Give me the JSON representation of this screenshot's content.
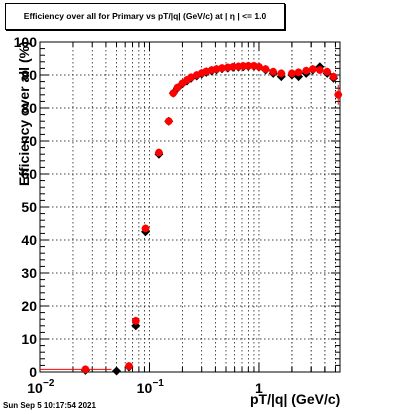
{
  "chart_data": {
    "type": "scatter",
    "title": "Efficiency over all for Primary vs pT/|q| (GeV/c) at |  η | <= 1.0",
    "xlabel": "pT/|q| (GeV/c)",
    "ylabel": "Efficiency over all (%)",
    "x_scale": "log",
    "xlim": [
      0.01,
      5.5
    ],
    "ylim": [
      0,
      100
    ],
    "grid": true,
    "x_ticks": [
      {
        "value": 0.01,
        "label": "10",
        "exponent": "−2"
      },
      {
        "value": 0.1,
        "label": "10",
        "exponent": "−1"
      },
      {
        "value": 1,
        "label": "1",
        "exponent": ""
      }
    ],
    "y_ticks": [
      "0",
      "10",
      "20",
      "30",
      "40",
      "50",
      "60",
      "70",
      "80",
      "90",
      "100"
    ],
    "series": [
      {
        "color": "#000000",
        "marker": "diamond",
        "points": [
          [
            0.026,
            0.5
          ],
          [
            0.05,
            0.3
          ],
          [
            0.065,
            1.5
          ],
          [
            0.075,
            14
          ],
          [
            0.092,
            42.5
          ],
          [
            0.122,
            66
          ],
          [
            0.15,
            76
          ],
          [
            0.165,
            84.5
          ],
          [
            0.18,
            86
          ],
          [
            0.2,
            87.3
          ],
          [
            0.22,
            88.2
          ],
          [
            0.24,
            89
          ],
          [
            0.27,
            89.7
          ],
          [
            0.3,
            90.3
          ],
          [
            0.33,
            90.8
          ],
          [
            0.37,
            91.2
          ],
          [
            0.41,
            91.6
          ],
          [
            0.46,
            91.9
          ],
          [
            0.52,
            92.1
          ],
          [
            0.58,
            92.3
          ],
          [
            0.65,
            92.4
          ],
          [
            0.72,
            92.5
          ],
          [
            0.8,
            92.6
          ],
          [
            0.9,
            92.6
          ],
          [
            1.0,
            92.4
          ],
          [
            1.15,
            91.5
          ],
          [
            1.35,
            90.5
          ],
          [
            1.6,
            89.5
          ],
          [
            2.0,
            90
          ],
          [
            2.3,
            89.5
          ],
          [
            2.7,
            90.5
          ],
          [
            3.1,
            91.5
          ],
          [
            3.6,
            92.5
          ],
          [
            4.2,
            90.5
          ],
          [
            4.8,
            89
          ]
        ]
      },
      {
        "color": "#ff0000",
        "marker": "circle",
        "points": [
          [
            0.026,
            0.8
          ],
          [
            0.065,
            1.8
          ],
          [
            0.075,
            15.5
          ],
          [
            0.092,
            43.5
          ],
          [
            0.122,
            66.5
          ],
          [
            0.15,
            76
          ],
          [
            0.165,
            84.5
          ],
          [
            0.18,
            86.2
          ],
          [
            0.2,
            87.5
          ],
          [
            0.22,
            88.5
          ],
          [
            0.24,
            89.3
          ],
          [
            0.27,
            90
          ],
          [
            0.3,
            90.6
          ],
          [
            0.33,
            91.1
          ],
          [
            0.37,
            91.5
          ],
          [
            0.41,
            91.8
          ],
          [
            0.46,
            92.1
          ],
          [
            0.52,
            92.3
          ],
          [
            0.58,
            92.5
          ],
          [
            0.65,
            92.6
          ],
          [
            0.72,
            92.7
          ],
          [
            0.8,
            92.8
          ],
          [
            0.9,
            92.8
          ],
          [
            1.0,
            92.5
          ],
          [
            1.15,
            91.8
          ],
          [
            1.35,
            91
          ],
          [
            1.6,
            90.5
          ],
          [
            2.0,
            90.5
          ],
          [
            2.3,
            90.8
          ],
          [
            2.7,
            91.3
          ],
          [
            3.1,
            91.8
          ],
          [
            3.6,
            91.5
          ],
          [
            4.2,
            91
          ],
          [
            4.8,
            89.5
          ],
          [
            5.3,
            84
          ]
        ]
      }
    ]
  },
  "datestamp": "Sun Sep  5 10:17:54 2021"
}
